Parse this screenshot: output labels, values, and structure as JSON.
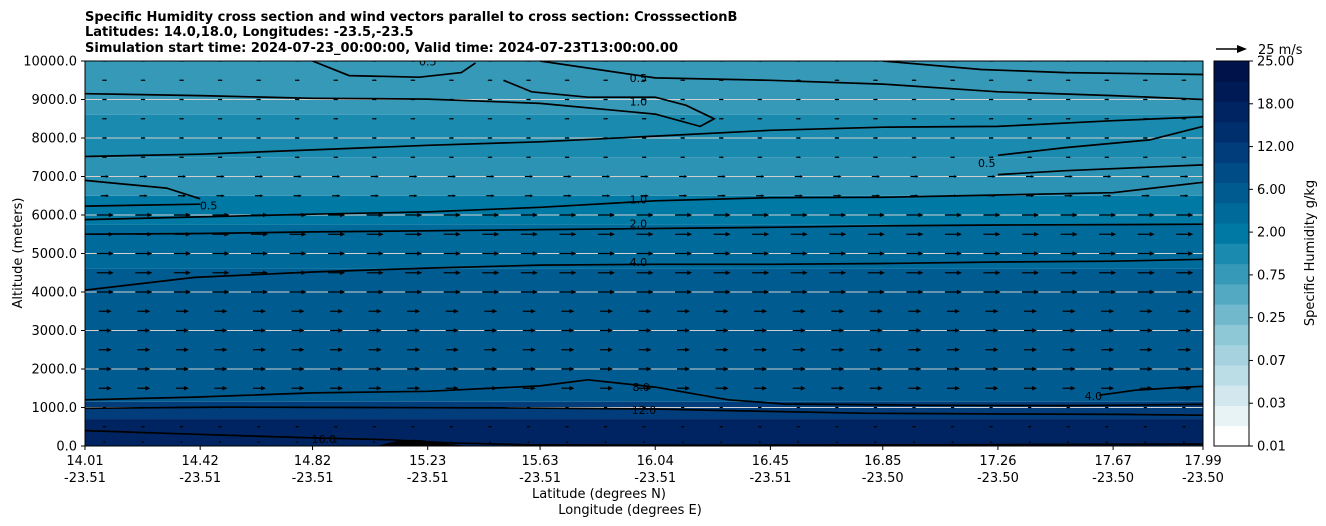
{
  "chart_data": {
    "type": "contour",
    "title_lines": [
      "Specific Humidity cross section and wind vectors parallel to cross section: CrosssectionB",
      "Latitudes: 14.0,18.0, Longitudes: -23.5,-23.5",
      "Simulation start time: 2024-07-23_00:00:00, Valid time: 2024-07-23T13:00:00.00"
    ],
    "ylabel": "Altitude (meters)",
    "xlabel_lines": [
      "Latitude (degrees N)",
      "Longitude (degrees E)"
    ],
    "ylim": [
      0,
      10000
    ],
    "y_ticks": [
      0,
      1000,
      2000,
      3000,
      4000,
      5000,
      6000,
      7000,
      8000,
      9000,
      10000
    ],
    "y_tick_labels": [
      "0.0",
      "1000.0",
      "2000.0",
      "3000.0",
      "4000.0",
      "5000.0",
      "6000.0",
      "7000.0",
      "8000.0",
      "9000.0",
      "10000.0"
    ],
    "x_range": [
      14.01,
      17.99
    ],
    "x_ticks": [
      {
        "lat": "14.01",
        "lon": "-23.51"
      },
      {
        "lat": "14.42",
        "lon": "-23.51"
      },
      {
        "lat": "14.82",
        "lon": "-23.51"
      },
      {
        "lat": "15.23",
        "lon": "-23.51"
      },
      {
        "lat": "15.63",
        "lon": "-23.51"
      },
      {
        "lat": "16.04",
        "lon": "-23.51"
      },
      {
        "lat": "16.45",
        "lon": "-23.51"
      },
      {
        "lat": "16.85",
        "lon": "-23.50"
      },
      {
        "lat": "17.26",
        "lon": "-23.50"
      },
      {
        "lat": "17.67",
        "lon": "-23.50"
      },
      {
        "lat": "17.99",
        "lon": "-23.50"
      }
    ],
    "colorbar": {
      "label": "Specific Humidity g/kg",
      "tick_labels": [
        "0.01",
        "0.03",
        "0.07",
        "0.25",
        "0.75",
        "2.00",
        "6.00",
        "12.00",
        "18.00",
        "25.00"
      ],
      "levels": [
        0.01,
        0.02,
        0.03,
        0.05,
        0.07,
        0.1,
        0.25,
        0.5,
        0.75,
        1.0,
        2.0,
        4.0,
        6.0,
        8.0,
        12.0,
        14.0,
        18.0,
        20.0,
        25.0
      ],
      "colors": [
        "#ffffff",
        "#e8f3f6",
        "#d2e8ee",
        "#bbdde6",
        "#a5d2de",
        "#8ec7d6",
        "#72b8cc",
        "#54a9c2",
        "#3699b8",
        "#1a8aae",
        "#007aa5",
        "#006a9b",
        "#005b91",
        "#004c86",
        "#003d7a",
        "#002f6e",
        "#002462",
        "#001a55",
        "#00124a"
      ]
    },
    "quiver_key": {
      "label": "25 m/s",
      "speed": 25
    },
    "background_bands": [
      {
        "y0": 0,
        "y1": 700,
        "value": 15,
        "color": "#002462"
      },
      {
        "y0": 700,
        "y1": 1150,
        "value": 10,
        "color": "#003d7a"
      },
      {
        "y0": 1150,
        "y1": 4600,
        "value": 6.5,
        "color": "#005b91"
      },
      {
        "y0": 4600,
        "y1": 5750,
        "value": 3.0,
        "color": "#006a9b"
      },
      {
        "y0": 5750,
        "y1": 6500,
        "value": 1.5,
        "color": "#007aa5"
      },
      {
        "y0": 6500,
        "y1": 7500,
        "value": 0.7,
        "color": "#2d93b4"
      },
      {
        "y0": 7500,
        "y1": 8600,
        "value": 0.9,
        "color": "#1a8aae"
      },
      {
        "y0": 8600,
        "y1": 10000,
        "value": 0.6,
        "color": "#3699b8"
      }
    ],
    "contours": [
      {
        "level": "16.0",
        "points": [
          [
            14.01,
            400
          ],
          [
            14.3,
            330
          ],
          [
            14.6,
            260
          ],
          [
            14.82,
            210
          ],
          [
            15.1,
            160
          ],
          [
            15.3,
            80
          ],
          [
            15.6,
            30
          ],
          [
            16.2,
            20
          ],
          [
            17.0,
            30
          ],
          [
            17.99,
            50
          ]
        ],
        "label_at": [
          14.86,
          180
        ]
      },
      {
        "level": "12.0",
        "points": [
          [
            14.01,
            980
          ],
          [
            14.5,
            1010
          ],
          [
            15.0,
            1000
          ],
          [
            15.5,
            990
          ],
          [
            16.04,
            960
          ],
          [
            16.3,
            920
          ],
          [
            16.8,
            850
          ],
          [
            17.3,
            830
          ],
          [
            17.7,
            820
          ],
          [
            17.99,
            800
          ]
        ],
        "label_at": [
          16.0,
          940
        ]
      },
      {
        "level": "8.0",
        "points": [
          [
            14.01,
            1200
          ],
          [
            14.4,
            1270
          ],
          [
            14.82,
            1380
          ],
          [
            15.23,
            1420
          ],
          [
            15.63,
            1560
          ],
          [
            15.8,
            1720
          ],
          [
            16.04,
            1530
          ],
          [
            16.3,
            1200
          ],
          [
            16.5,
            1090
          ],
          [
            17.0,
            1060
          ],
          [
            17.5,
            1050
          ],
          [
            17.99,
            1080
          ]
        ],
        "label_at": [
          15.99,
          1530
        ]
      },
      {
        "level": "4.0",
        "points": [
          [
            17.62,
            1320
          ],
          [
            17.75,
            1450
          ],
          [
            17.9,
            1520
          ],
          [
            17.99,
            1550
          ]
        ],
        "label_at": [
          17.6,
          1300
        ]
      },
      {
        "level": "4.0",
        "points": [
          [
            14.01,
            4050
          ],
          [
            14.4,
            4380
          ],
          [
            14.82,
            4520
          ],
          [
            15.23,
            4620
          ],
          [
            15.63,
            4700
          ],
          [
            16.04,
            4720
          ],
          [
            16.45,
            4720
          ],
          [
            16.85,
            4740
          ],
          [
            17.26,
            4780
          ],
          [
            17.67,
            4800
          ],
          [
            17.99,
            4850
          ]
        ],
        "label_at": [
          15.98,
          4780
        ]
      },
      {
        "level": "2.0",
        "points": [
          [
            14.01,
            5500
          ],
          [
            14.42,
            5520
          ],
          [
            14.82,
            5560
          ],
          [
            15.23,
            5590
          ],
          [
            15.63,
            5620
          ],
          [
            16.04,
            5650
          ],
          [
            16.45,
            5680
          ],
          [
            16.85,
            5720
          ],
          [
            17.26,
            5740
          ],
          [
            17.67,
            5750
          ],
          [
            17.99,
            5760
          ]
        ],
        "label_at": [
          15.98,
          5780
        ]
      },
      {
        "level": "1.0",
        "points": [
          [
            14.01,
            5880
          ],
          [
            14.42,
            5950
          ],
          [
            14.82,
            6020
          ],
          [
            15.23,
            6080
          ],
          [
            15.63,
            6200
          ],
          [
            16.04,
            6370
          ],
          [
            16.45,
            6450
          ],
          [
            16.85,
            6460
          ],
          [
            17.26,
            6520
          ],
          [
            17.67,
            6580
          ],
          [
            17.99,
            6850
          ]
        ],
        "label_at": [
          15.98,
          6400
        ]
      },
      {
        "level": "0.5",
        "points": [
          [
            14.01,
            6900
          ],
          [
            14.3,
            6700
          ],
          [
            14.42,
            6420
          ]
        ],
        "label_at": [
          14.45,
          6250
        ]
      },
      {
        "level": "0.5",
        "points": [
          [
            14.01,
            6230
          ],
          [
            14.42,
            6280
          ]
        ],
        "label_at": null
      },
      {
        "level": "0.5",
        "points": [
          [
            17.26,
            7050
          ],
          [
            17.5,
            7150
          ],
          [
            17.99,
            7300
          ]
        ],
        "label_at": null
      },
      {
        "level": "0.5",
        "points": [
          [
            17.26,
            7550
          ],
          [
            17.5,
            7750
          ],
          [
            17.8,
            7950
          ],
          [
            17.99,
            8300
          ]
        ],
        "label_at": [
          17.22,
          7350
        ]
      },
      {
        "level": "1.0",
        "points": [
          [
            14.01,
            7520
          ],
          [
            14.42,
            7580
          ],
          [
            14.82,
            7690
          ],
          [
            15.23,
            7810
          ],
          [
            15.63,
            7900
          ],
          [
            16.04,
            8050
          ],
          [
            16.45,
            8200
          ],
          [
            16.85,
            8280
          ],
          [
            17.26,
            8300
          ],
          [
            17.67,
            8450
          ],
          [
            17.99,
            8550
          ]
        ],
        "label_at": null
      },
      {
        "level": "1.0",
        "points": [
          [
            14.01,
            9150
          ],
          [
            14.42,
            9100
          ],
          [
            14.82,
            9030
          ],
          [
            15.23,
            9010
          ],
          [
            15.63,
            8900
          ],
          [
            16.04,
            8620
          ],
          [
            16.2,
            8300
          ],
          [
            16.25,
            8500
          ],
          [
            16.15,
            8850
          ],
          [
            16.04,
            9060
          ],
          [
            15.8,
            9060
          ],
          [
            15.6,
            9200
          ],
          [
            15.5,
            9500
          ]
        ],
        "label_at": [
          15.98,
          8950
        ]
      },
      {
        "level": "0.5",
        "points": [
          [
            15.63,
            10000
          ],
          [
            16.04,
            9560
          ],
          [
            16.45,
            9500
          ],
          [
            16.85,
            9400
          ],
          [
            17.26,
            9200
          ],
          [
            17.67,
            9100
          ],
          [
            17.99,
            9000
          ]
        ],
        "label_at": [
          15.98,
          9560
        ]
      },
      {
        "level": "0.5",
        "points": [
          [
            14.82,
            10000
          ],
          [
            14.95,
            9620
          ],
          [
            15.2,
            9580
          ],
          [
            15.35,
            9700
          ],
          [
            15.4,
            9950
          ]
        ],
        "label_at": [
          15.23,
          9990
        ]
      },
      {
        "level": "0.5",
        "points": [
          [
            16.85,
            10000
          ],
          [
            17.2,
            9780
          ],
          [
            17.5,
            9700
          ],
          [
            17.99,
            9650
          ]
        ],
        "label_at": null
      }
    ]
  }
}
